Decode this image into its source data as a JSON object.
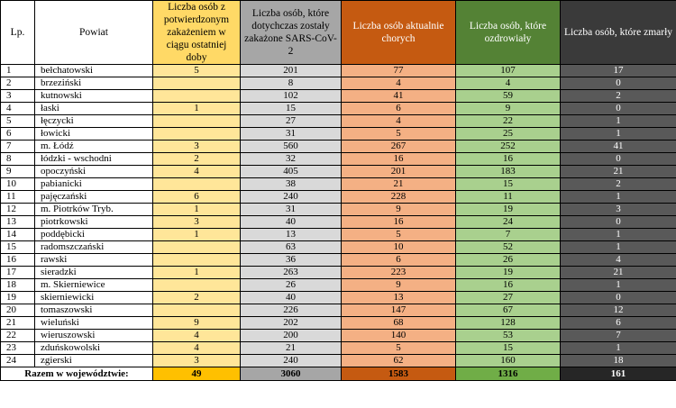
{
  "headers": {
    "lp": "Lp.",
    "powiat": "Powiat",
    "new": "Liczba osób z potwierdzonym zakażeniem w ciągu ostatniej doby",
    "total": "Liczba osób, które dotychczas zostały zakażone SARS-CoV-2",
    "active": "Liczba osób aktualnie chorych",
    "recovered": "Liczba osób, które ozdrowiały",
    "deaths": "Liczba osób, które zmarły"
  },
  "rows": [
    {
      "lp": "1",
      "powiat": "bełchatowski",
      "new": "5",
      "total": "201",
      "active": "77",
      "recovered": "107",
      "deaths": "17"
    },
    {
      "lp": "2",
      "powiat": "brzeziński",
      "new": "",
      "total": "8",
      "active": "4",
      "recovered": "4",
      "deaths": "0"
    },
    {
      "lp": "3",
      "powiat": "kutnowski",
      "new": "",
      "total": "102",
      "active": "41",
      "recovered": "59",
      "deaths": "2"
    },
    {
      "lp": "4",
      "powiat": "łaski",
      "new": "1",
      "total": "15",
      "active": "6",
      "recovered": "9",
      "deaths": "0"
    },
    {
      "lp": "5",
      "powiat": "łęczycki",
      "new": "",
      "total": "27",
      "active": "4",
      "recovered": "22",
      "deaths": "1"
    },
    {
      "lp": "6",
      "powiat": "łowicki",
      "new": "",
      "total": "31",
      "active": "5",
      "recovered": "25",
      "deaths": "1"
    },
    {
      "lp": "7",
      "powiat": "m. Łódź",
      "new": "3",
      "total": "560",
      "active": "267",
      "recovered": "252",
      "deaths": "41"
    },
    {
      "lp": "8",
      "powiat": "łódzki - wschodni",
      "new": "2",
      "total": "32",
      "active": "16",
      "recovered": "16",
      "deaths": "0"
    },
    {
      "lp": "9",
      "powiat": "opoczyński",
      "new": "4",
      "total": "405",
      "active": "201",
      "recovered": "183",
      "deaths": "21"
    },
    {
      "lp": "10",
      "powiat": "pabianicki",
      "new": "",
      "total": "38",
      "active": "21",
      "recovered": "15",
      "deaths": "2"
    },
    {
      "lp": "11",
      "powiat": "pajęczański",
      "new": "6",
      "total": "240",
      "active": "228",
      "recovered": "11",
      "deaths": "1"
    },
    {
      "lp": "12",
      "powiat": "m. Piotrków Tryb.",
      "new": "1",
      "total": "31",
      "active": "9",
      "recovered": "19",
      "deaths": "3"
    },
    {
      "lp": "13",
      "powiat": "piotrkowski",
      "new": "3",
      "total": "40",
      "active": "16",
      "recovered": "24",
      "deaths": "0"
    },
    {
      "lp": "14",
      "powiat": "poddębicki",
      "new": "1",
      "total": "13",
      "active": "5",
      "recovered": "7",
      "deaths": "1"
    },
    {
      "lp": "15",
      "powiat": "radomszczański",
      "new": "",
      "total": "63",
      "active": "10",
      "recovered": "52",
      "deaths": "1"
    },
    {
      "lp": "16",
      "powiat": "rawski",
      "new": "",
      "total": "36",
      "active": "6",
      "recovered": "26",
      "deaths": "4"
    },
    {
      "lp": "17",
      "powiat": "sieradzki",
      "new": "1",
      "total": "263",
      "active": "223",
      "recovered": "19",
      "deaths": "21"
    },
    {
      "lp": "18",
      "powiat": "m. Skierniewice",
      "new": "",
      "total": "26",
      "active": "9",
      "recovered": "16",
      "deaths": "1"
    },
    {
      "lp": "19",
      "powiat": "skierniewicki",
      "new": "2",
      "total": "40",
      "active": "13",
      "recovered": "27",
      "deaths": "0"
    },
    {
      "lp": "20",
      "powiat": "tomaszowski",
      "new": "",
      "total": "226",
      "active": "147",
      "recovered": "67",
      "deaths": "12"
    },
    {
      "lp": "21",
      "powiat": "wieluński",
      "new": "9",
      "total": "202",
      "active": "68",
      "recovered": "128",
      "deaths": "6"
    },
    {
      "lp": "22",
      "powiat": "wieruszowski",
      "new": "4",
      "total": "200",
      "active": "140",
      "recovered": "53",
      "deaths": "7"
    },
    {
      "lp": "23",
      "powiat": "zduńskowolski",
      "new": "4",
      "total": "21",
      "active": "5",
      "recovered": "15",
      "deaths": "1"
    },
    {
      "lp": "24",
      "powiat": "zgierski",
      "new": "3",
      "total": "240",
      "active": "62",
      "recovered": "160",
      "deaths": "18"
    }
  ],
  "totals": {
    "label": "Razem w województwie:",
    "new": "49",
    "total": "3060",
    "active": "1583",
    "recovered": "1316",
    "deaths": "161"
  },
  "colors": {
    "new": "#ffe699",
    "total": "#d9d9d9",
    "active": "#f4b084",
    "recovered": "#a9d08e",
    "deaths": "#595959"
  }
}
